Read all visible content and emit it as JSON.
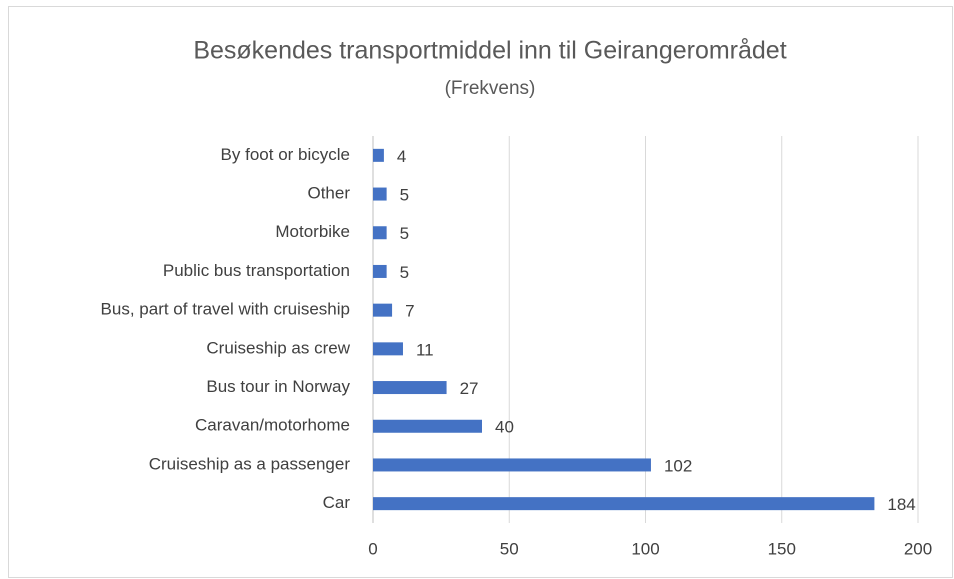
{
  "chart_data": {
    "type": "bar",
    "orientation": "horizontal",
    "title": "Besøkendes transportmiddel inn til Geirangerområdet",
    "subtitle": "(Frekvens)",
    "categories": [
      "By foot or bicycle",
      "Other",
      "Motorbike",
      "Public bus transportation",
      "Bus, part of travel with cruiseship",
      "Cruiseship as crew",
      "Bus tour in Norway",
      "Caravan/motorhome",
      "Cruiseship as a passenger",
      "Car"
    ],
    "values": [
      4,
      5,
      5,
      5,
      7,
      11,
      27,
      40,
      102,
      184
    ],
    "color": "#4472c4",
    "xlim": [
      0,
      200
    ],
    "xticks": [
      0,
      50,
      100,
      150,
      200
    ],
    "grid": true
  }
}
